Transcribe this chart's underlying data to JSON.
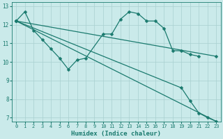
{
  "xlabel": "Humidex (Indice chaleur)",
  "background_color": "#caeaea",
  "grid_color": "#a8d0d0",
  "line_color": "#1a7a6e",
  "xlim": [
    -0.5,
    23.5
  ],
  "ylim": [
    6.8,
    13.2
  ],
  "yticks": [
    7,
    8,
    9,
    10,
    11,
    12,
    13
  ],
  "xticks": [
    0,
    1,
    2,
    3,
    4,
    5,
    6,
    7,
    8,
    9,
    10,
    11,
    12,
    13,
    14,
    15,
    16,
    17,
    18,
    19,
    20,
    21,
    22,
    23
  ],
  "line1_x": [
    0,
    23
  ],
  "line1_y": [
    12.2,
    10.3
  ],
  "line2_x": [
    0,
    1,
    2,
    3,
    4,
    5,
    6,
    7,
    8,
    10,
    11,
    12,
    13,
    14,
    15,
    16,
    17,
    18,
    19,
    20,
    21
  ],
  "line2_y": [
    12.2,
    12.7,
    11.7,
    11.2,
    10.7,
    10.2,
    9.6,
    10.1,
    10.2,
    11.5,
    11.5,
    12.3,
    12.7,
    12.6,
    12.2,
    12.2,
    11.8,
    10.6,
    10.6,
    10.4,
    10.3
  ],
  "line3_x": [
    0,
    19,
    20,
    21,
    22,
    23
  ],
  "line3_y": [
    12.2,
    8.6,
    7.9,
    7.25,
    7.0,
    6.8
  ],
  "line4_x": [
    0,
    23
  ],
  "line4_y": [
    12.2,
    6.8
  ],
  "markersize": 2.5,
  "linewidth": 0.9,
  "font_color": "#1a7a6e",
  "xlabel_fontsize": 6.5,
  "tick_fontsize": 5.0
}
